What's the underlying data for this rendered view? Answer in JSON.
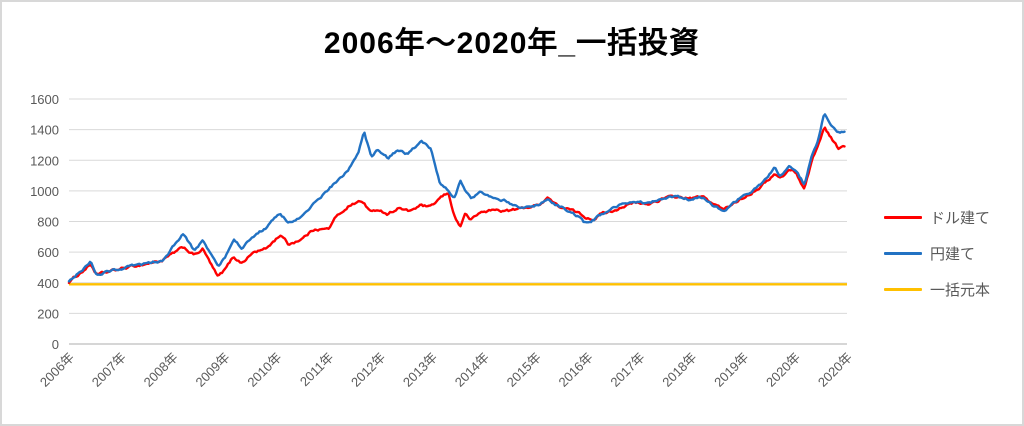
{
  "chart": {
    "title": "2006年～2020年_一括投資",
    "legend": [
      {
        "label": "ドル建て",
        "color": "#ff0000"
      },
      {
        "label": "円建て",
        "color": "#2272c3"
      },
      {
        "label": "一括元本",
        "color": "#ffc000"
      }
    ]
  },
  "chart_data": {
    "type": "line",
    "title": "2006年～2020年_一括投資",
    "x_unit": "decimal_year",
    "xlim": [
      2006,
      2021
    ],
    "ylim": [
      0,
      1600
    ],
    "grid": true,
    "legend_position": "right",
    "y_ticks": [
      0,
      200,
      400,
      600,
      800,
      1000,
      1200,
      1400,
      1600
    ],
    "x_ticks": [
      {
        "x": 2006,
        "label": "2006年"
      },
      {
        "x": 2007,
        "label": "2007年"
      },
      {
        "x": 2008,
        "label": "2008年"
      },
      {
        "x": 2009,
        "label": "2009年"
      },
      {
        "x": 2010,
        "label": "2010年"
      },
      {
        "x": 2011,
        "label": "2011年"
      },
      {
        "x": 2012,
        "label": "2012年"
      },
      {
        "x": 2013,
        "label": "2013年"
      },
      {
        "x": 2014,
        "label": "2014年"
      },
      {
        "x": 2015,
        "label": "2015年"
      },
      {
        "x": 2016,
        "label": "2016年"
      },
      {
        "x": 2017,
        "label": "2017年"
      },
      {
        "x": 2018,
        "label": "2018年"
      },
      {
        "x": 2019,
        "label": "2019年"
      },
      {
        "x": 2020,
        "label": "2020年"
      },
      {
        "x": 2021,
        "label": "2020年"
      }
    ],
    "x": [
      2006.0,
      2006.42,
      2006.54,
      2007.0,
      2007.42,
      2007.79,
      2008.21,
      2008.42,
      2008.58,
      2008.87,
      2009.0,
      2009.17,
      2009.33,
      2009.56,
      2009.79,
      2010.08,
      2010.23,
      2010.5,
      2010.75,
      2011.0,
      2011.13,
      2011.38,
      2011.58,
      2011.69,
      2011.83,
      2011.96,
      2012.15,
      2012.35,
      2012.54,
      2012.79,
      2012.98,
      2013.15,
      2013.31,
      2013.44,
      2013.54,
      2013.63,
      2013.75,
      2013.94,
      2014.17,
      2014.46,
      2014.65,
      2014.85,
      2015.04,
      2015.23,
      2015.42,
      2015.62,
      2015.81,
      2015.94,
      2016.1,
      2016.29,
      2016.48,
      2016.67,
      2016.9,
      2017.15,
      2017.44,
      2017.68,
      2017.83,
      2018.02,
      2018.21,
      2018.4,
      2018.63,
      2018.88,
      2019.13,
      2019.37,
      2019.6,
      2019.71,
      2019.9,
      2020.02,
      2020.18,
      2020.33,
      2020.44,
      2020.56,
      2020.71,
      2020.83,
      2020.96
    ],
    "series": [
      {
        "name": "ドル建て",
        "color": "#ff0000",
        "jitter": 7,
        "values": [
          405,
          520,
          450,
          490,
          520,
          545,
          630,
          580,
          620,
          435,
          480,
          570,
          530,
          600,
          620,
          715,
          650,
          690,
          755,
          750,
          820,
          900,
          930,
          920,
          855,
          880,
          850,
          890,
          865,
          905,
          890,
          950,
          985,
          830,
          765,
          850,
          810,
          860,
          875,
          870,
          880,
          895,
          905,
          960,
          900,
          880,
          855,
          830,
          820,
          855,
          870,
          900,
          920,
          910,
          950,
          960,
          955,
          950,
          960,
          920,
          875,
          935,
          985,
          1040,
          1110,
          1080,
          1140,
          1120,
          1010,
          1210,
          1290,
          1420,
          1340,
          1280,
          1290
        ]
      },
      {
        "name": "円建て",
        "color": "#2272c3",
        "jitter": 7,
        "values": [
          415,
          535,
          455,
          495,
          515,
          545,
          720,
          600,
          680,
          505,
          560,
          690,
          630,
          700,
          760,
          850,
          790,
          830,
          930,
          1010,
          1050,
          1130,
          1260,
          1390,
          1215,
          1265,
          1210,
          1270,
          1235,
          1325,
          1270,
          1060,
          1010,
          960,
          1075,
          1000,
          945,
          995,
          965,
          930,
          900,
          890,
          910,
          940,
          905,
          870,
          830,
          790,
          810,
          850,
          880,
          910,
          930,
          915,
          955,
          965,
          950,
          945,
          960,
          910,
          865,
          940,
          990,
          1050,
          1150,
          1100,
          1160,
          1130,
          1040,
          1250,
          1330,
          1510,
          1430,
          1390,
          1390
        ]
      },
      {
        "name": "一括元本",
        "color": "#ffc000",
        "constant": 390
      }
    ],
    "style": {
      "grid_color": "#d9d9d9",
      "axis_color": "#d6d6d6",
      "tick_label_color": "#595959",
      "line_width": 2.4
    }
  }
}
